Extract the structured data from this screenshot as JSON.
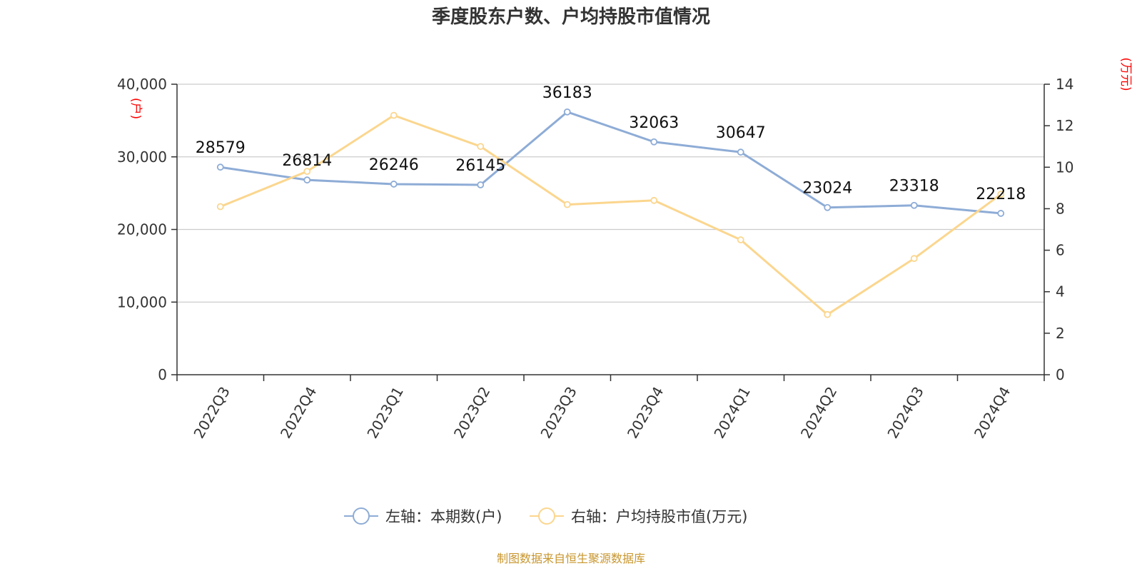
{
  "chart_data": {
    "type": "line",
    "title": "季度股东户数、户均持股市值情况",
    "categories": [
      "2022Q3",
      "2022Q4",
      "2023Q1",
      "2023Q2",
      "2023Q3",
      "2023Q4",
      "2024Q1",
      "2024Q2",
      "2024Q3",
      "2024Q4"
    ],
    "series": [
      {
        "name": "左轴：本期数(户)",
        "axis": "left",
        "color": "#8eacd6",
        "values": [
          28579,
          26814,
          26246,
          26145,
          36183,
          32063,
          30647,
          23024,
          23318,
          22218
        ],
        "labels": [
          "28579",
          "26814",
          "26246",
          "26145",
          "36183",
          "32063",
          "30647",
          "23024",
          "23318",
          "22218"
        ]
      },
      {
        "name": "右轴：户均持股市值(万元)",
        "axis": "right",
        "color": "#fbd68e",
        "values": [
          8.1,
          9.8,
          12.5,
          11.0,
          8.2,
          8.4,
          6.5,
          2.9,
          5.6,
          8.7
        ]
      }
    ],
    "left_axis": {
      "unit": "(户)",
      "ylim": [
        0,
        40000
      ],
      "ticks": [
        0,
        10000,
        20000,
        30000,
        40000
      ],
      "tick_labels": [
        "0",
        "10,000",
        "20,000",
        "30,000",
        "40,000"
      ]
    },
    "right_axis": {
      "unit": "(万元)",
      "ylim": [
        0,
        14
      ],
      "ticks": [
        0,
        2,
        4,
        6,
        8,
        10,
        12,
        14
      ],
      "tick_labels": [
        "0",
        "2",
        "4",
        "6",
        "8",
        "10",
        "12",
        "14"
      ]
    },
    "grid": true,
    "legend": "bottom-center",
    "source": "制图数据来自恒生聚源数据库"
  }
}
